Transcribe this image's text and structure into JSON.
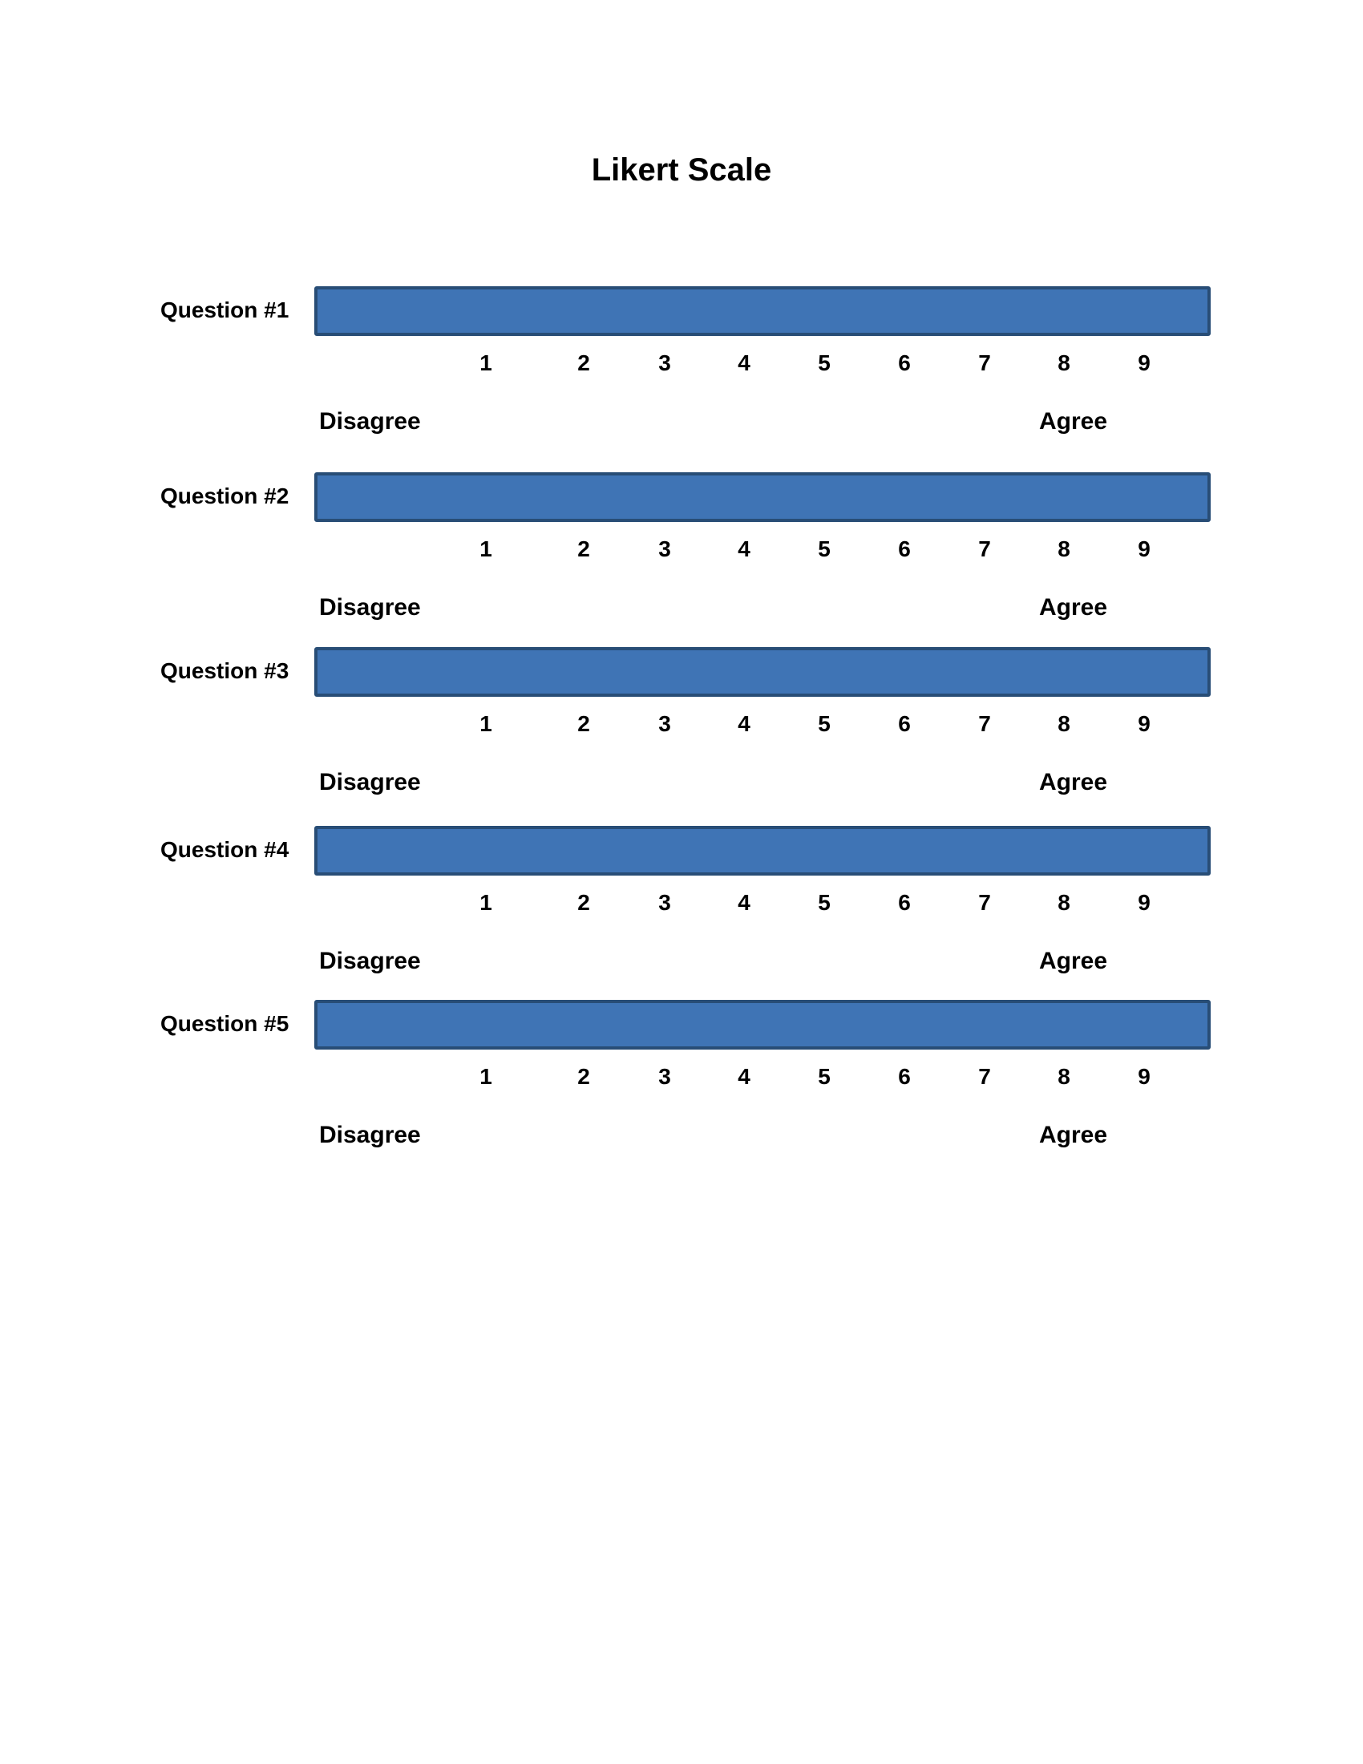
{
  "document": {
    "title": "Likert Scale",
    "scale_points": [
      "1",
      "2",
      "3",
      "4",
      "5",
      "6",
      "7",
      "8",
      "9"
    ],
    "questions": [
      {
        "label": "Question #1",
        "low_anchor": "Disagree",
        "high_anchor": "Agree"
      },
      {
        "label": "Question #2",
        "low_anchor": "Disagree",
        "high_anchor": "Agree"
      },
      {
        "label": "Question #3",
        "low_anchor": "Disagree",
        "high_anchor": "Agree"
      },
      {
        "label": "Question #4",
        "low_anchor": "Disagree",
        "high_anchor": "Agree"
      },
      {
        "label": "Question #5",
        "low_anchor": "Disagree",
        "high_anchor": "Agree"
      }
    ],
    "colors": {
      "bar_fill": "#3f74b5",
      "bar_border": "#284d76"
    }
  }
}
